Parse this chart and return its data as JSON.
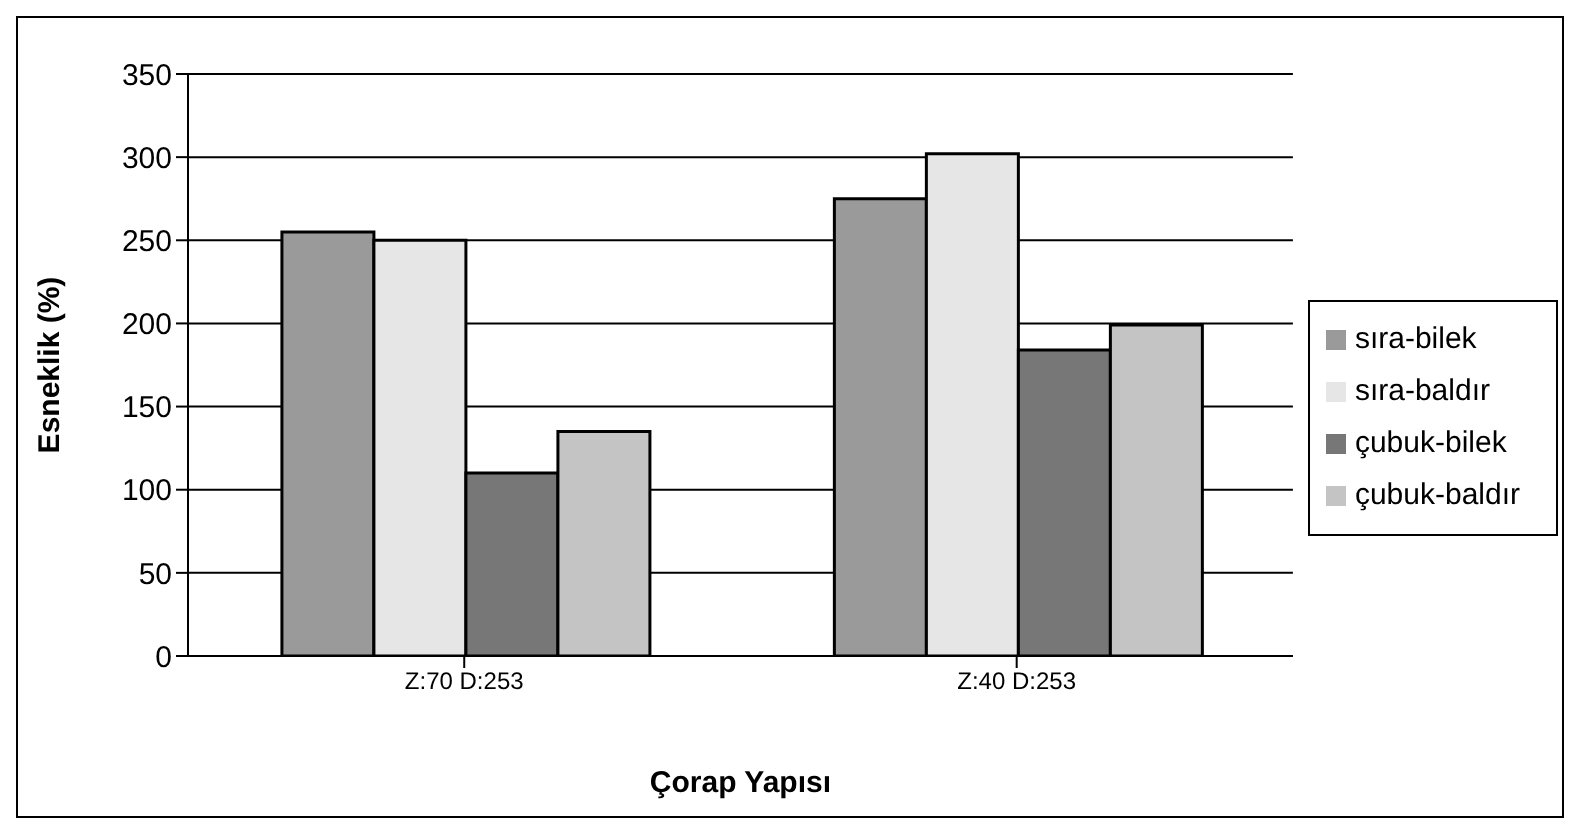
{
  "chart_data": {
    "type": "bar",
    "xlabel": "Çorap Yapısı",
    "ylabel": "Esneklik (%)",
    "categories": [
      "Z:70 D:253",
      "Z:40 D:253"
    ],
    "series": [
      {
        "name": "sıra-bilek",
        "color": "#9a9a9a",
        "values": [
          255,
          275
        ]
      },
      {
        "name": "sıra-baldır",
        "color": "#e6e6e6",
        "values": [
          250,
          302
        ]
      },
      {
        "name": "çubuk-bilek",
        "color": "#777777",
        "values": [
          110,
          184
        ]
      },
      {
        "name": "çubuk-baldır",
        "color": "#c4c4c4",
        "values": [
          135,
          199
        ]
      }
    ],
    "ylim": [
      0,
      350
    ],
    "yticks": [
      0,
      50,
      100,
      150,
      200,
      250,
      300,
      350
    ],
    "grid": "y",
    "legend": "right"
  }
}
